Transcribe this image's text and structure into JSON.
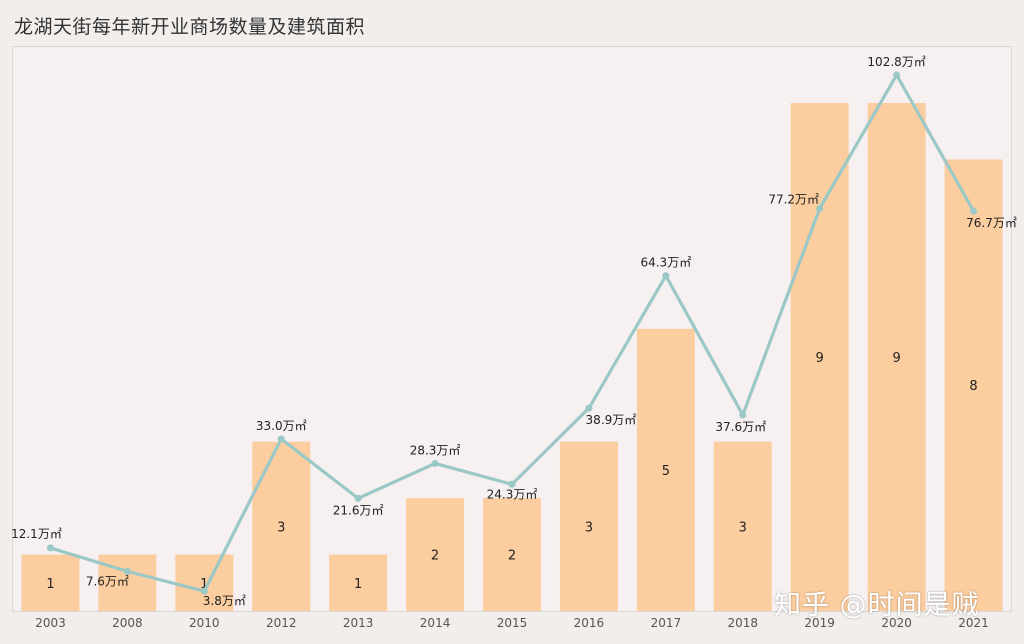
{
  "title": "龙湖天街每年新开业商场数量及建筑面积",
  "watermark": "知乎 @时间是贼",
  "colors": {
    "bar": "#fccd9e",
    "line": "#9ac8c6",
    "text": "#222222",
    "axis_text": "#555555"
  },
  "chart_data": {
    "type": "bar",
    "title": "龙湖天街每年新开业商场数量及建筑面积",
    "categories": [
      "2003",
      "2008",
      "2010",
      "2012",
      "2013",
      "2014",
      "2015",
      "2016",
      "2017",
      "2018",
      "2019",
      "2020",
      "2021"
    ],
    "series": [
      {
        "type": "bar",
        "values": [
          1,
          1,
          1,
          3,
          1,
          2,
          2,
          3,
          5,
          3,
          9,
          9,
          8
        ],
        "labels": [
          "1",
          "",
          "1",
          "3",
          "1",
          "2",
          "2",
          "3",
          "5",
          "3",
          "9",
          "9",
          "8"
        ]
      },
      {
        "type": "line",
        "values": [
          12.1,
          7.6,
          3.8,
          33.0,
          21.6,
          28.3,
          24.3,
          38.9,
          64.3,
          37.6,
          77.2,
          102.8,
          76.7
        ],
        "labels": [
          "12.1万㎡",
          "7.6万㎡",
          "3.8万㎡",
          "33.0万㎡",
          "21.6万㎡",
          "28.3万㎡",
          "24.3万㎡",
          "38.9万㎡",
          "64.3万㎡",
          "37.6万㎡",
          "77.2万㎡",
          "102.8万㎡",
          "76.7万㎡"
        ]
      }
    ],
    "ylim_bar": [
      0,
      10
    ],
    "ylim_line": [
      0,
      110
    ],
    "grid": false,
    "legend": "none"
  }
}
